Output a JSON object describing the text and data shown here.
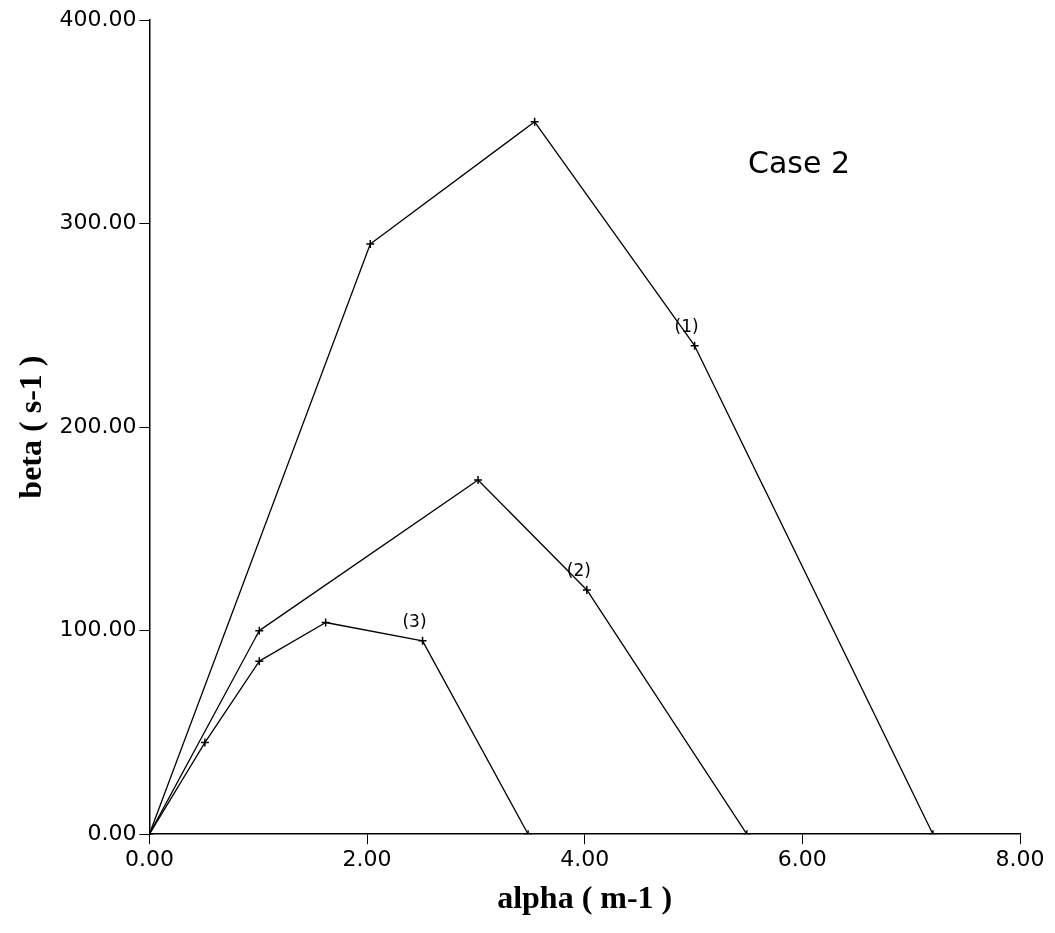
{
  "chart_data": {
    "type": "line",
    "xlabel": "alpha ( m-1 )",
    "ylabel": "beta ( s-1 )",
    "xlim": [
      0,
      8
    ],
    "ylim": [
      0,
      400
    ],
    "xticks": [
      {
        "value": 0,
        "label": "0.00"
      },
      {
        "value": 2,
        "label": "2.00"
      },
      {
        "value": 4,
        "label": "4.00"
      },
      {
        "value": 6,
        "label": "6.00"
      },
      {
        "value": 8,
        "label": "8.00"
      }
    ],
    "yticks": [
      {
        "value": 0,
        "label": "0.00"
      },
      {
        "value": 100,
        "label": "100.00"
      },
      {
        "value": 200,
        "label": "200.00"
      },
      {
        "value": 300,
        "label": "300.00"
      },
      {
        "value": 400,
        "label": "400.00"
      }
    ],
    "grid": false,
    "legend": false,
    "marker": "cross",
    "line_style": "solid",
    "series": [
      {
        "name": "(1)",
        "color": "#000000",
        "x": [
          0,
          2.03,
          3.54,
          5.01,
          7.2
        ],
        "values": [
          0,
          290,
          350,
          240,
          0
        ]
      },
      {
        "name": "(2)",
        "color": "#000000",
        "x": [
          0,
          1.01,
          3.02,
          4.02,
          5.49
        ],
        "values": [
          0,
          100,
          174,
          120,
          0
        ]
      },
      {
        "name": "(3)",
        "color": "#000000",
        "x": [
          0,
          0.51,
          1.01,
          1.62,
          2.51,
          3.48
        ],
        "values": [
          0,
          45,
          85,
          104,
          95,
          0
        ]
      }
    ],
    "annotations": [
      "Case 2"
    ]
  }
}
